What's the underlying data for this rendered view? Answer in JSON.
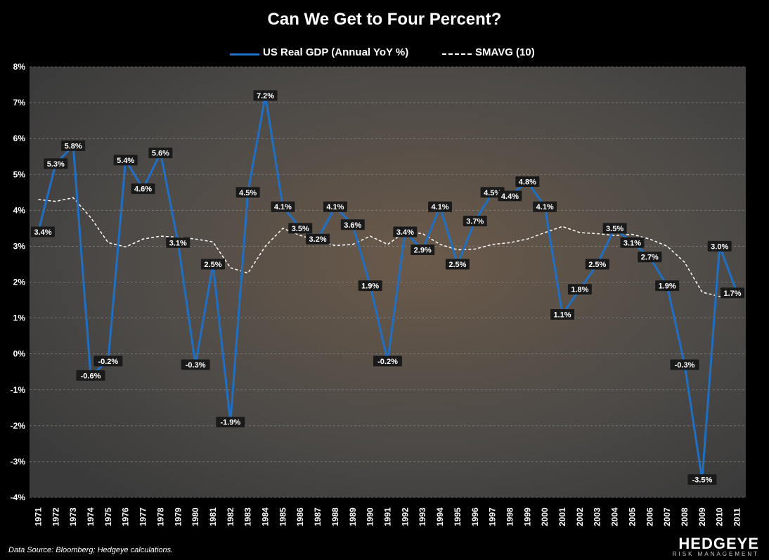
{
  "chart_data": {
    "type": "line",
    "title": "Can We Get to Four Percent?",
    "categories": [
      "1971",
      "1972",
      "1973",
      "1974",
      "1975",
      "1976",
      "1977",
      "1978",
      "1979",
      "1980",
      "1981",
      "1982",
      "1983",
      "1984",
      "1985",
      "1986",
      "1987",
      "1988",
      "1989",
      "1990",
      "1991",
      "1992",
      "1993",
      "1994",
      "1995",
      "1996",
      "1997",
      "1998",
      "1999",
      "2000",
      "2001",
      "2002",
      "2003",
      "2004",
      "2005",
      "2006",
      "2007",
      "2008",
      "2009",
      "2010",
      "2011"
    ],
    "series": [
      {
        "name": "US Real GDP (Annual YoY %)",
        "color": "#1f6fc5",
        "values": [
          3.4,
          5.3,
          5.8,
          -0.6,
          -0.2,
          5.4,
          4.6,
          5.6,
          3.1,
          -0.3,
          2.5,
          -1.9,
          4.5,
          7.2,
          4.1,
          3.5,
          3.2,
          4.1,
          3.6,
          1.9,
          -0.2,
          3.4,
          2.9,
          4.1,
          2.5,
          3.7,
          4.5,
          4.4,
          4.8,
          4.1,
          1.1,
          1.8,
          2.5,
          3.5,
          3.1,
          2.7,
          1.9,
          -0.3,
          -3.5,
          3.0,
          1.7
        ],
        "labels": [
          "3.4%",
          "5.3%",
          "5.8%",
          "-0.6%",
          "-0.2%",
          "5.4%",
          "4.6%",
          "5.6%",
          "3.1%",
          "-0.3%",
          "2.5%",
          "-1.9%",
          "4.5%",
          "7.2%",
          "4.1%",
          "3.5%",
          "3.2%",
          "4.1%",
          "3.6%",
          "1.9%",
          "-0.2%",
          "3.4%",
          "2.9%",
          "4.1%",
          "2.5%",
          "3.7%",
          "4.5%",
          "4.4%",
          "4.8%",
          "4.1%",
          "1.1%",
          "1.8%",
          "2.5%",
          "3.5%",
          "3.1%",
          "2.7%",
          "1.9%",
          "-0.3%",
          "-3.5%",
          "3.0%",
          "1.7%"
        ]
      },
      {
        "name": "SMAVG (10)",
        "color": "#ffffff",
        "dashed": true,
        "values": [
          4.3,
          4.25,
          4.35,
          3.8,
          3.1,
          2.98,
          3.2,
          3.28,
          3.25,
          3.2,
          3.12,
          2.4,
          2.25,
          3.0,
          3.5,
          3.3,
          3.15,
          3.02,
          3.05,
          3.28,
          3.05,
          3.4,
          3.35,
          3.05,
          2.9,
          2.92,
          3.05,
          3.1,
          3.2,
          3.38,
          3.55,
          3.38,
          3.35,
          3.3,
          3.33,
          3.2,
          3.0,
          2.55,
          1.72,
          1.6,
          1.6
        ]
      }
    ],
    "ylim": [
      -4,
      8
    ],
    "yticks": [
      "8%",
      "7%",
      "6%",
      "5%",
      "4%",
      "3%",
      "2%",
      "1%",
      "0%",
      "-1%",
      "-2%",
      "-3%",
      "-4%"
    ],
    "grid": true,
    "legend_position": "top-center",
    "xlabel": "",
    "ylabel": ""
  },
  "footer": {
    "source": "Data Source: Bloomberg; Hedgeye calculations.",
    "logo_main": "HEDGEYE",
    "logo_sub": "RISK MANAGEMENT"
  }
}
